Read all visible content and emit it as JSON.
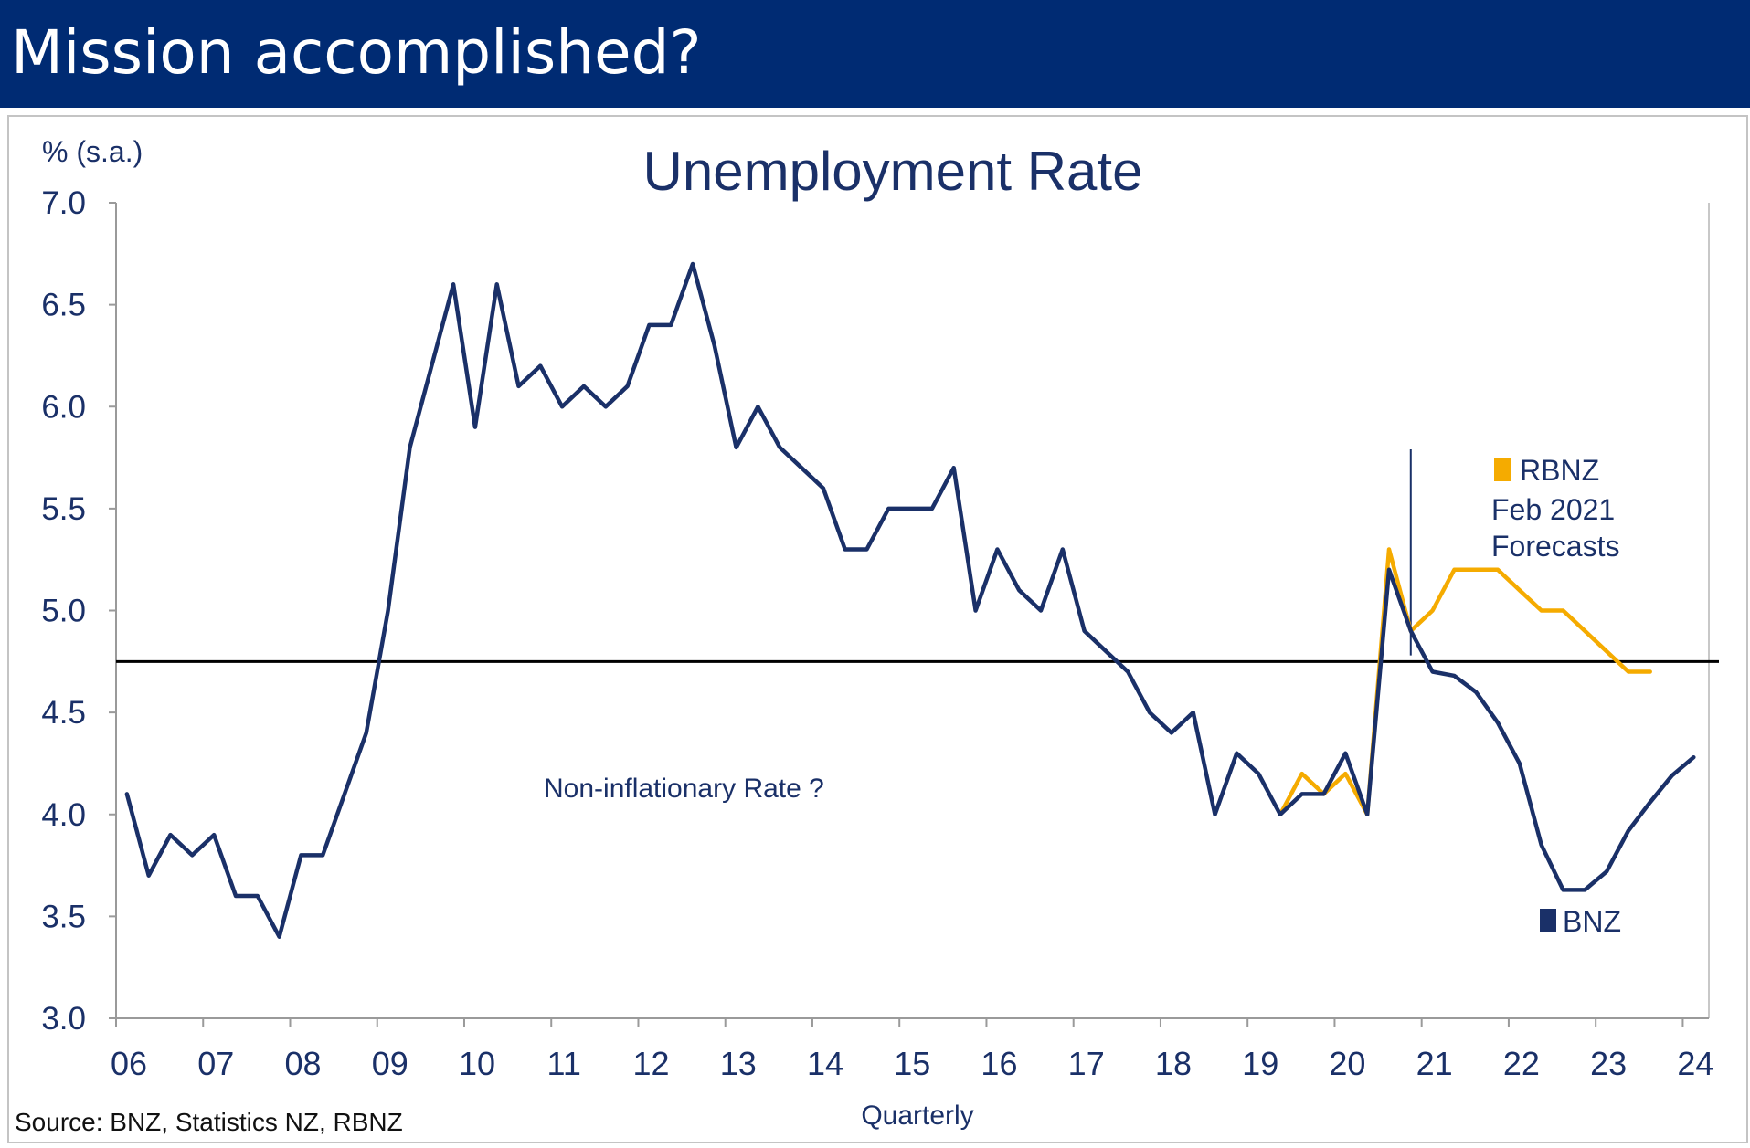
{
  "page": {
    "banner_title": "Mission accomplished?",
    "banner_color": "#002B73"
  },
  "chart_data": {
    "type": "line",
    "title": "Unemployment Rate",
    "ylabel": "% (s.a.)",
    "xlabel": "Quarterly",
    "source": "Source: BNZ, Statistics NZ, RBNZ",
    "ylim": [
      3.0,
      7.0
    ],
    "xlim": [
      2006.0,
      2024.3
    ],
    "yticks": [
      3.0,
      3.5,
      4.0,
      4.5,
      5.0,
      5.5,
      6.0,
      6.5,
      7.0
    ],
    "ytick_labels": [
      "3.0",
      "3.5",
      "4.0",
      "4.5",
      "5.0",
      "5.5",
      "6.0",
      "6.5",
      "7.0"
    ],
    "xtick_labels": [
      "06",
      "07",
      "08",
      "09",
      "10",
      "11",
      "12",
      "13",
      "14",
      "15",
      "16",
      "17",
      "18",
      "19",
      "20",
      "21",
      "22",
      "23",
      "24"
    ],
    "grid": false,
    "reference_line": {
      "y": 4.75,
      "label": "Non-inflationary Rate ?",
      "color": "#000000"
    },
    "forecast_marker_x": 2020.875,
    "legend": [
      {
        "name": "RBNZ",
        "sub": [
          "Feb 2021",
          "Forecasts"
        ],
        "color": "#F5AB00"
      },
      {
        "name": "BNZ",
        "color": "#1A3068"
      }
    ],
    "series": [
      {
        "name": "RBNZ",
        "color": "#F5AB00",
        "x": [
          2019.375,
          2019.625,
          2019.875,
          2020.125,
          2020.375,
          2020.625,
          2020.875,
          2021.125,
          2021.375,
          2021.625,
          2021.875,
          2022.125,
          2022.375,
          2022.625,
          2022.875,
          2023.125,
          2023.375,
          2023.625
        ],
        "y": [
          4.0,
          4.2,
          4.1,
          4.2,
          4.0,
          5.3,
          4.9,
          5.0,
          5.2,
          5.2,
          5.2,
          5.1,
          5.0,
          5.0,
          4.9,
          4.8,
          4.7,
          4.7
        ]
      },
      {
        "name": "BNZ",
        "color": "#1A3068",
        "x": [
          2006.125,
          2006.375,
          2006.625,
          2006.875,
          2007.125,
          2007.375,
          2007.625,
          2007.875,
          2008.125,
          2008.375,
          2008.625,
          2008.875,
          2009.125,
          2009.375,
          2009.625,
          2009.875,
          2010.125,
          2010.375,
          2010.625,
          2010.875,
          2011.125,
          2011.375,
          2011.625,
          2011.875,
          2012.125,
          2012.375,
          2012.625,
          2012.875,
          2013.125,
          2013.375,
          2013.625,
          2013.875,
          2014.125,
          2014.375,
          2014.625,
          2014.875,
          2015.125,
          2015.375,
          2015.625,
          2015.875,
          2016.125,
          2016.375,
          2016.625,
          2016.875,
          2017.125,
          2017.375,
          2017.625,
          2017.875,
          2018.125,
          2018.375,
          2018.625,
          2018.875,
          2019.125,
          2019.375,
          2019.625,
          2019.875,
          2020.125,
          2020.375,
          2020.625,
          2020.875,
          2021.125,
          2021.375,
          2021.625,
          2021.875,
          2022.125,
          2022.375,
          2022.625,
          2022.875,
          2023.125,
          2023.375,
          2023.625,
          2023.875,
          2024.125
        ],
        "y": [
          4.1,
          3.7,
          3.9,
          3.8,
          3.9,
          3.6,
          3.6,
          3.4,
          3.8,
          3.8,
          4.1,
          4.4,
          5.0,
          5.8,
          6.2,
          6.6,
          5.9,
          6.6,
          6.1,
          6.2,
          6.0,
          6.1,
          6.0,
          6.1,
          6.4,
          6.4,
          6.7,
          6.3,
          5.8,
          6.0,
          5.8,
          5.7,
          5.6,
          5.3,
          5.3,
          5.5,
          5.5,
          5.5,
          5.7,
          5.0,
          5.3,
          5.1,
          5.0,
          5.3,
          4.9,
          4.8,
          4.7,
          4.5,
          4.4,
          4.5,
          4.0,
          4.3,
          4.2,
          4.0,
          4.1,
          4.1,
          4.3,
          4.0,
          5.2,
          4.9,
          4.7,
          4.68,
          4.6,
          4.45,
          4.25,
          3.85,
          3.63,
          3.63,
          3.72,
          3.92,
          4.06,
          4.19,
          4.28
        ]
      }
    ]
  }
}
